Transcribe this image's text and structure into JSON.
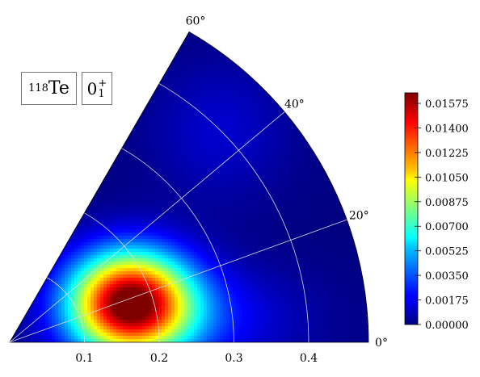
{
  "chart_data": {
    "type": "heatmap",
    "subtype": "polar-sector",
    "title": "",
    "nucleus": {
      "mass_number": "118",
      "symbol": "Te"
    },
    "state": {
      "base": "0",
      "sub": "1",
      "sup": "+"
    },
    "radial_axis": {
      "ticks": [
        0.1,
        0.2,
        0.3,
        0.4
      ],
      "tick_labels": [
        "0.1",
        "0.2",
        "0.3",
        "0.4"
      ],
      "range": [
        0,
        0.48
      ]
    },
    "angular_axis": {
      "ticks": [
        0,
        20,
        40,
        60
      ],
      "tick_labels": [
        "0°",
        "20°",
        "40°",
        "60°"
      ],
      "range_deg": [
        0,
        60
      ]
    },
    "grid": true,
    "colormap": "jet",
    "colorbar": {
      "range": [
        0,
        0.0165
      ],
      "ticks": [
        0.0,
        0.00175,
        0.0035,
        0.00525,
        0.007,
        0.00875,
        0.0105,
        0.01225,
        0.014,
        0.01575
      ],
      "tick_labels": [
        "0.00000",
        "0.00175",
        "0.00350",
        "0.00525",
        "0.00700",
        "0.00875",
        "0.01050",
        "0.01225",
        "0.01400",
        "0.01575"
      ],
      "placement": "right"
    },
    "peak": {
      "beta": 0.17,
      "gamma_deg": 18,
      "value": 0.0165
    },
    "secondary_lobe": {
      "beta": 0.4,
      "gamma_deg": 45,
      "value": 0.00125
    }
  }
}
